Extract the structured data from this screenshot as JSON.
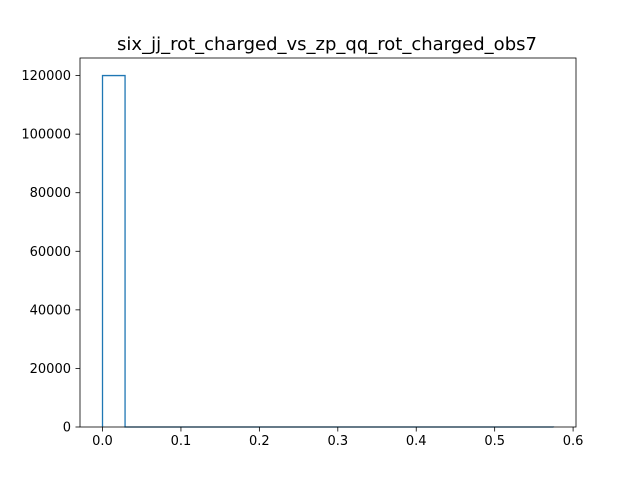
{
  "chart_data": {
    "type": "histogram",
    "title": "six_jj_rot_charged_vs_zp_qq_rot_charged_obs7",
    "xlabel": "",
    "ylabel": "",
    "histtype": "step",
    "xlim": [
      -0.0287,
      0.6037
    ],
    "ylim": [
      0,
      126000
    ],
    "xticks": [
      0.0,
      0.1,
      0.2,
      0.3,
      0.4,
      0.5,
      0.6
    ],
    "xtick_labels": [
      "0.0",
      "0.1",
      "0.2",
      "0.3",
      "0.4",
      "0.5",
      "0.6"
    ],
    "yticks": [
      0,
      20000,
      40000,
      60000,
      80000,
      100000,
      120000
    ],
    "ytick_labels": [
      "0",
      "20000",
      "40000",
      "60000",
      "80000",
      "100000",
      "120000"
    ],
    "bin_edges": [
      0.0,
      0.02875,
      0.0575,
      0.08625,
      0.115,
      0.14375,
      0.1725,
      0.20125,
      0.23,
      0.25875,
      0.2875,
      0.31625,
      0.345,
      0.37375,
      0.4025,
      0.43125,
      0.46,
      0.48875,
      0.5175,
      0.54625,
      0.575
    ],
    "counts": [
      120000,
      0,
      0,
      0,
      0,
      0,
      0,
      0,
      0,
      0,
      0,
      0,
      0,
      0,
      0,
      0,
      0,
      0,
      0,
      1
    ],
    "grid": false,
    "legend": "none",
    "color": "#1f77b4"
  }
}
